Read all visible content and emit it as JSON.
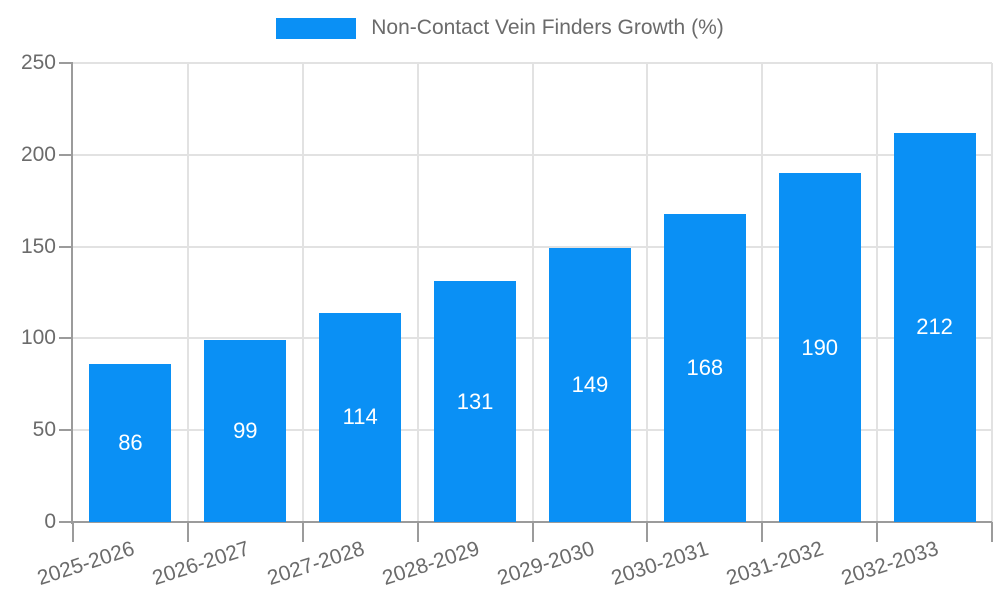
{
  "legend": {
    "label": "Non-Contact Vein Finders Growth (%)"
  },
  "chart_data": {
    "type": "bar",
    "title": "Non-Contact Vein Finders Growth (%)",
    "categories": [
      "2025-2026",
      "2026-2027",
      "2027-2028",
      "2028-2029",
      "2029-2030",
      "2030-2031",
      "2031-2032",
      "2032-2033"
    ],
    "values": [
      86,
      99,
      114,
      131,
      149,
      168,
      190,
      212
    ],
    "xlabel": "",
    "ylabel": "",
    "ylim": [
      0,
      250
    ],
    "yticks": [
      0,
      50,
      100,
      150,
      200,
      250
    ],
    "grid": true,
    "legend_position": "top",
    "value_labels": "inside-center"
  },
  "colors": {
    "bar": "#0a90f5",
    "value_label": "#ffffff",
    "axis": "#9b9b9b",
    "gridline": "#e2e2e2",
    "text": "#6b6b6b",
    "background": "#ffffff"
  }
}
